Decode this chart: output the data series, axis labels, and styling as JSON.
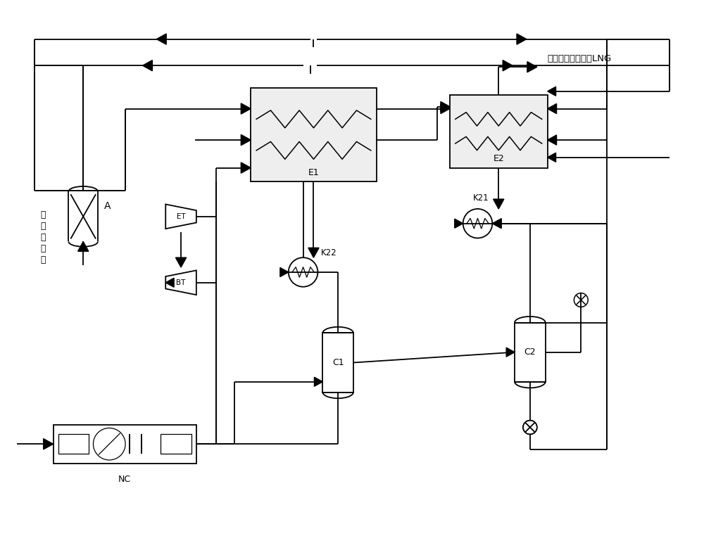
{
  "background_color": "#ffffff",
  "line_color": "#000000",
  "label_LNG": "高纯度液化天然气LNG",
  "label_A": "A",
  "label_E1": "E1",
  "label_E2": "E2",
  "label_ET": "ET",
  "label_BT": "BT",
  "label_K21": "K21",
  "label_K22": "K22",
  "label_C1": "C1",
  "label_C2": "C2",
  "label_NC": "NC",
  "label_syngas": "合成氨尾气"
}
